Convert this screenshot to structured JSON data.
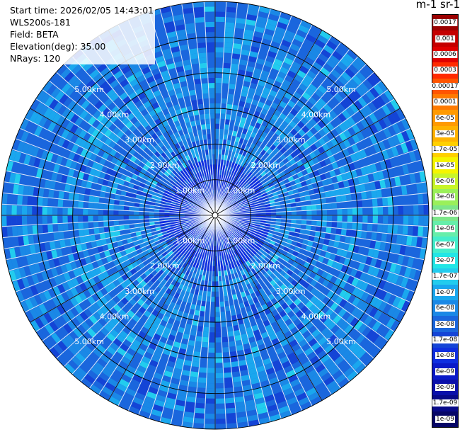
{
  "header": {
    "start_time": "Start time: 2026/02/05 14:43:01",
    "instrument": "WLS200s-181",
    "field": "Field: BETA",
    "elevation": "Elevation(deg): 35.00",
    "nrays": "NRays: 120"
  },
  "colorbar": {
    "unit_label": "m-1 sr-1",
    "labels": [
      "0.0017",
      "0.001",
      "0.0006",
      "0.0003",
      "0.00017",
      "0.0001",
      "6e-05",
      "3e-05",
      "1.7e-05",
      "1e-05",
      "6e-06",
      "3e-06",
      "1.7e-06",
      "1e-06",
      "6e-07",
      "3e-07",
      "1.7e-07",
      "1e-07",
      "6e-08",
      "3e-08",
      "1.7e-08",
      "1e-08",
      "6e-09",
      "3e-09",
      "1.7e-09",
      "1e-09"
    ],
    "colors": [
      "#9a0000",
      "#c40000",
      "#e00000",
      "#ff2a00",
      "#ff5500",
      "#ff7a00",
      "#ff9a00",
      "#ffb300",
      "#ffd000",
      "#f5f500",
      "#c8f52a",
      "#9af05a",
      "#7de68a",
      "#66eeaa",
      "#44eecc",
      "#22e6e6",
      "#22ccee",
      "#1aa7ee",
      "#1a88e6",
      "#1a66dd",
      "#1444d6",
      "#0e2ee0",
      "#0a1ac8",
      "#0a10aa",
      "#080a88",
      "#060666"
    ]
  },
  "chart_data": {
    "type": "heatmap",
    "title": "",
    "field": "BETA",
    "elevation_deg": 35.0,
    "n_rays": 120,
    "range_rings_km": [
      1,
      2,
      3,
      4,
      5
    ],
    "range_ring_labels": [
      "1.00km",
      "2.00km",
      "3.00km",
      "4.00km",
      "5.00km"
    ],
    "max_range_km": 6.0,
    "value_scale": "log",
    "value_range": [
      1e-09,
      0.0017
    ],
    "dominant_value": 3e-08,
    "near_range_value": 1e-08
  }
}
